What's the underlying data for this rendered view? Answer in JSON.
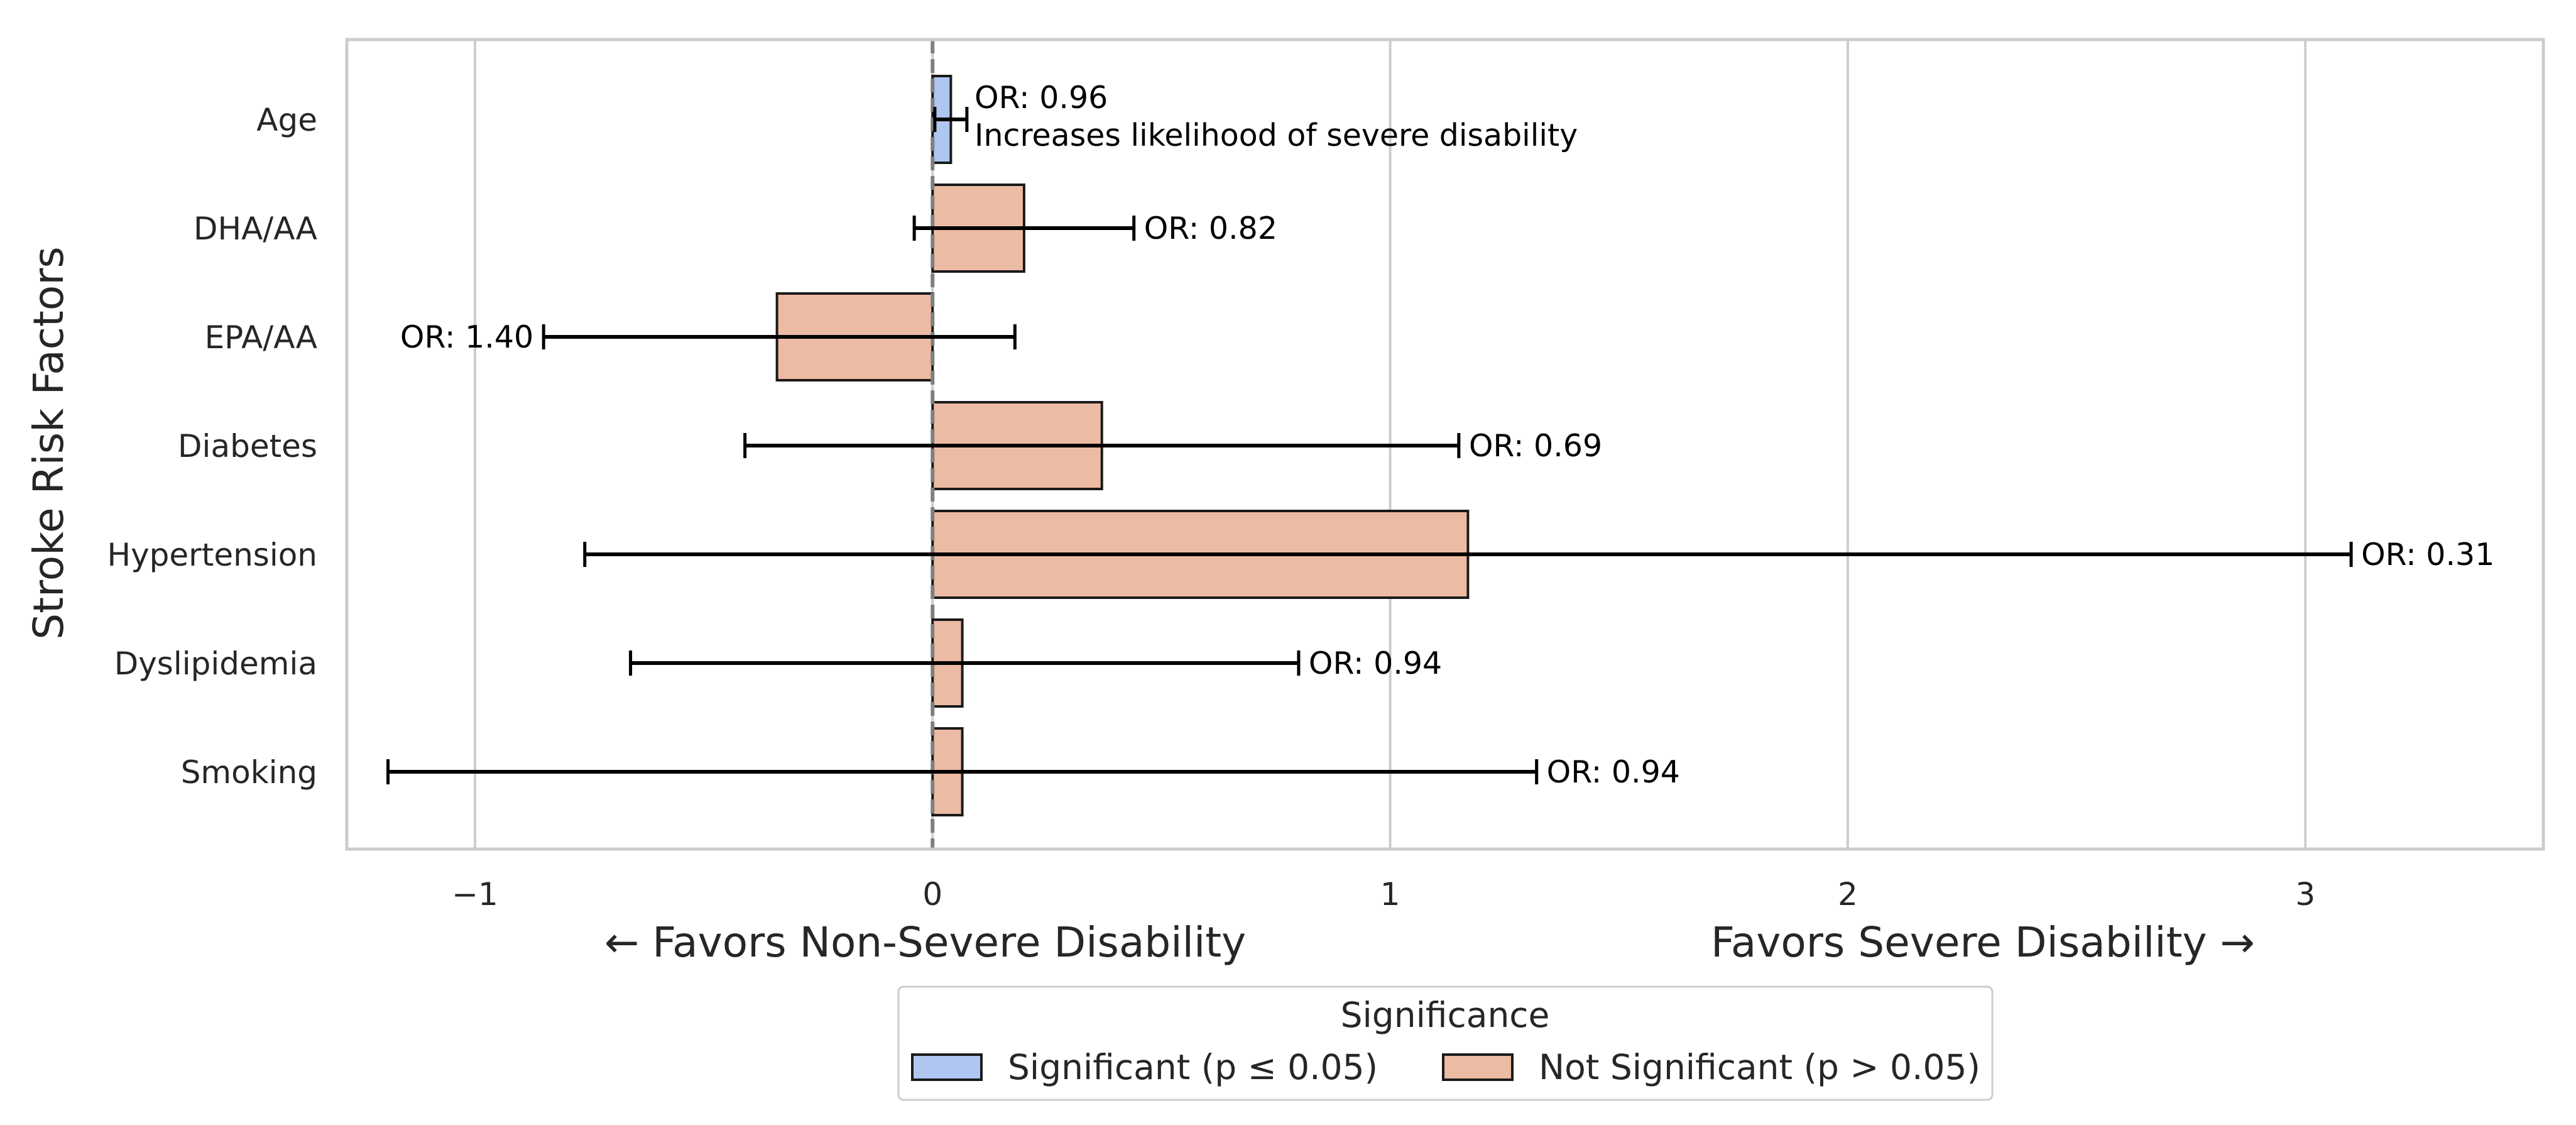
{
  "chart_data": {
    "type": "bar",
    "orientation": "horizontal",
    "title": "",
    "ylabel": "Stroke Risk Factors",
    "xlabel_left": "← Favors Non-Severe Disability",
    "xlabel_right": "Favors Severe Disability →",
    "xlim": [
      -1.28,
      3.52
    ],
    "xticks": [
      {
        "value": -1,
        "label": "−1"
      },
      {
        "value": 0,
        "label": "0"
      },
      {
        "value": 1,
        "label": "1"
      },
      {
        "value": 2,
        "label": "2"
      },
      {
        "value": 3,
        "label": "3"
      }
    ],
    "grid": true,
    "reference_line": 0,
    "categories": [
      "Age",
      "DHA/AA",
      "EPA/AA",
      "Diabetes",
      "Hypertension",
      "Dyslipidemia",
      "Smoking"
    ],
    "bars": [
      {
        "name": "Age",
        "value": 0.04,
        "ci_low": 0.005,
        "ci_high": 0.075,
        "or_label": "OR: 0.96",
        "annotation": "Increases likelihood of severe disability",
        "significant": true
      },
      {
        "name": "DHA/AA",
        "value": 0.2,
        "ci_low": -0.04,
        "ci_high": 0.44,
        "or_label": "OR: 0.82",
        "significant": false
      },
      {
        "name": "EPA/AA",
        "value": -0.34,
        "ci_low": -0.85,
        "ci_high": 0.18,
        "or_label": "OR: 1.40",
        "significant": false
      },
      {
        "name": "Diabetes",
        "value": 0.37,
        "ci_low": -0.41,
        "ci_high": 1.15,
        "or_label": "OR: 0.69",
        "significant": false
      },
      {
        "name": "Hypertension",
        "value": 1.17,
        "ci_low": -0.76,
        "ci_high": 3.1,
        "or_label": "OR: 0.31",
        "significant": false
      },
      {
        "name": "Dyslipidemia",
        "value": 0.065,
        "ci_low": -0.66,
        "ci_high": 0.8,
        "or_label": "OR: 0.94",
        "significant": false
      },
      {
        "name": "Smoking",
        "value": 0.065,
        "ci_low": -1.19,
        "ci_high": 1.32,
        "or_label": "OR: 0.94",
        "significant": false
      }
    ],
    "legend": {
      "title": "Significance",
      "placement": "bottom-center",
      "items": [
        {
          "label": "Significant (p ≤ 0.05)",
          "color": "#aec6f0"
        },
        {
          "label": "Not Significant (p > 0.05)",
          "color": "#ecbba3"
        }
      ]
    },
    "colors": {
      "significant": "#aec6f0",
      "not_significant": "#ecbba3",
      "grid": "#cccccc",
      "frame": "#cccccc",
      "reference_line": "#7f7f7f",
      "error_bar": "#000000"
    }
  }
}
